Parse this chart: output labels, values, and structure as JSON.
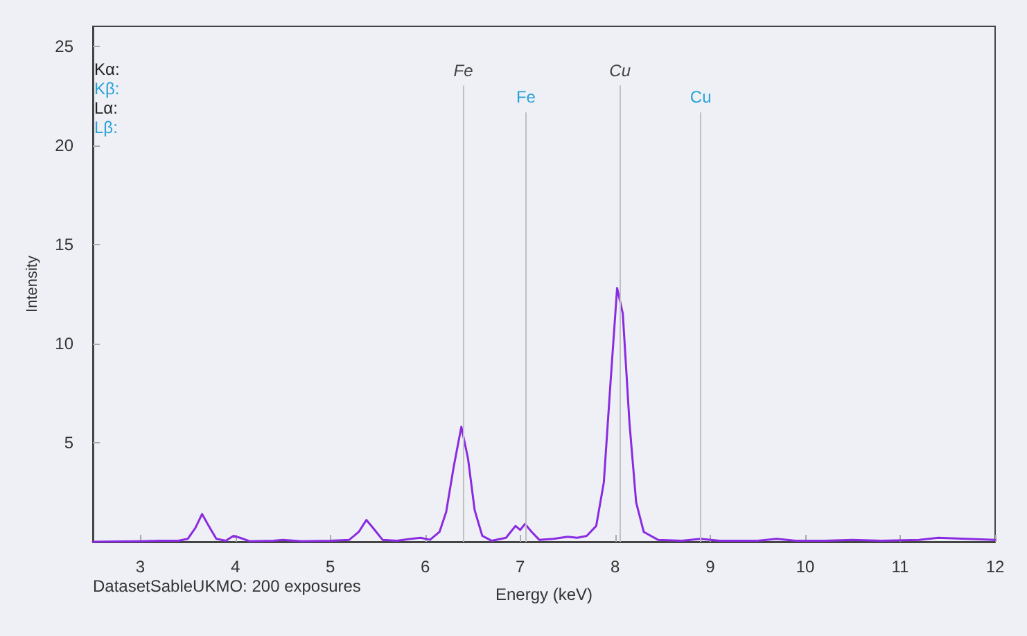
{
  "chart_data": {
    "type": "line",
    "xlabel": "Energy (keV)",
    "ylabel": "Intensity",
    "annotations": [
      "Kα:",
      "Kβ:",
      "Lα:",
      "Lβ:",
      "DatasetSableUKMO: 200 exposures"
    ],
    "x": [
      2.5,
      2.8,
      3.0,
      3.2,
      3.4,
      3.5,
      3.58,
      3.65,
      3.72,
      3.8,
      3.9,
      3.98,
      4.05,
      4.15,
      4.4,
      4.5,
      4.7,
      5.0,
      5.2,
      5.3,
      5.38,
      5.45,
      5.55,
      5.7,
      5.85,
      5.95,
      6.05,
      6.15,
      6.22,
      6.3,
      6.38,
      6.45,
      6.52,
      6.6,
      6.7,
      6.85,
      6.95,
      7.0,
      7.05,
      7.12,
      7.2,
      7.35,
      7.5,
      7.6,
      7.7,
      7.8,
      7.88,
      7.95,
      8.02,
      8.08,
      8.15,
      8.22,
      8.3,
      8.45,
      8.7,
      8.9,
      9.1,
      9.5,
      9.7,
      9.9,
      10.2,
      10.5,
      10.8,
      11.2,
      11.4,
      11.7,
      12.0
    ],
    "series": [
      {
        "color": "#8a2be2",
        "values": [
          0,
          0.02,
          0.03,
          0.05,
          0.05,
          0.15,
          0.7,
          1.4,
          0.8,
          0.15,
          0.05,
          0.3,
          0.2,
          0.03,
          0.05,
          0.1,
          0.03,
          0.05,
          0.1,
          0.5,
          1.1,
          0.7,
          0.1,
          0.05,
          0.15,
          0.2,
          0.1,
          0.5,
          1.5,
          3.8,
          5.8,
          4.2,
          1.6,
          0.3,
          0.05,
          0.2,
          0.8,
          0.6,
          0.9,
          0.5,
          0.1,
          0.15,
          0.25,
          0.2,
          0.3,
          0.8,
          3.0,
          8.0,
          12.8,
          11.5,
          6.0,
          2.0,
          0.5,
          0.1,
          0.05,
          0.15,
          0.05,
          0.05,
          0.15,
          0.05,
          0.05,
          0.1,
          0.05,
          0.1,
          0.2,
          0.15,
          0.1
        ]
      }
    ],
    "xlim": [
      2.5,
      12
    ],
    "xticks": [
      3,
      4,
      5,
      6,
      7,
      8,
      9,
      10,
      11,
      12
    ],
    "ylim": [
      0,
      26
    ],
    "yticks": [
      5,
      10,
      15,
      20,
      25
    ],
    "ref_lines": [
      {
        "axis": "x",
        "value": 6.4,
        "label": "Fe",
        "color": "#c0c0c0"
      },
      {
        "axis": "x",
        "value": 7.06,
        "label": "Fe",
        "color": "#c0c0c0"
      },
      {
        "axis": "x",
        "value": 8.05,
        "label": "Cu",
        "color": "#c0c0c0"
      },
      {
        "axis": "x",
        "value": 8.9,
        "label": "Cu",
        "color": "#c0c0c0"
      }
    ],
    "grid": false,
    "marker": "none"
  }
}
